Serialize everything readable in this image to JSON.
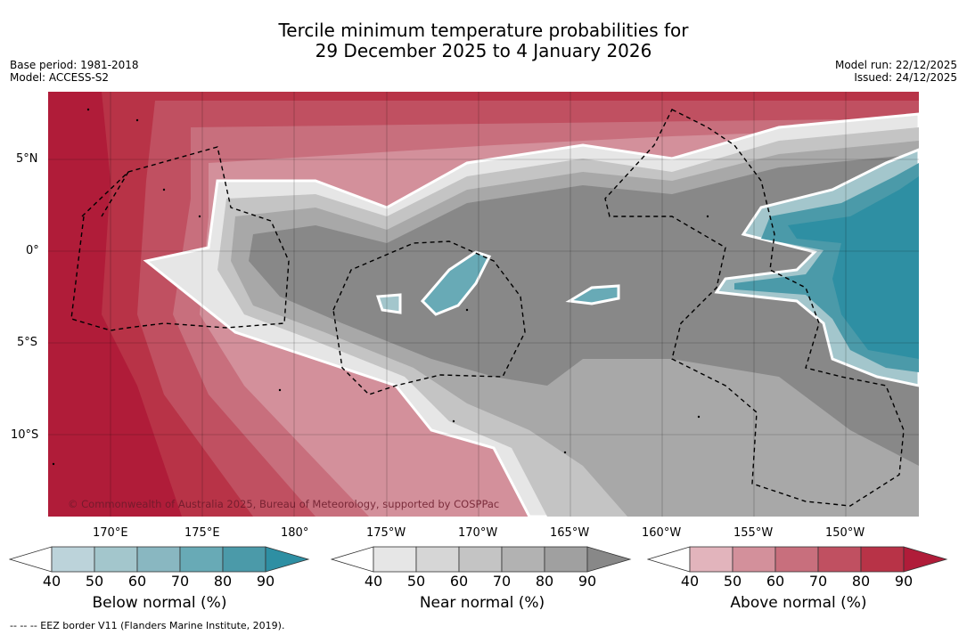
{
  "title": {
    "line1": "Tercile minimum temperature probabilities for",
    "line2": "29 December 2025 to 4 January 2026"
  },
  "meta_left": {
    "base_period": "Base period: 1981-2018",
    "model": "Model: ACCESS-S2"
  },
  "meta_right": {
    "model_run": "Model run: 22/12/2025",
    "issued": "Issued: 24/12/2025"
  },
  "latitude_labels": [
    "5°N",
    "0°",
    "5°S",
    "10°S"
  ],
  "longitude_labels": [
    "170°E",
    "175°E",
    "180°",
    "175°W",
    "170°W",
    "165°W",
    "160°W",
    "155°W",
    "150°W"
  ],
  "copyright": "© Commonwealth of Australia 2025, Bureau of Meteorology, supported by COSPPac",
  "colorbars": [
    {
      "title": "Below normal (%)",
      "ticks": [
        "40",
        "50",
        "60",
        "70",
        "80",
        "90"
      ],
      "colors": [
        "#ffffff",
        "#bcd3da",
        "#a3c6cc",
        "#89b7c1",
        "#68aab6",
        "#4b9aa9",
        "#2e8fa3"
      ]
    },
    {
      "title": "Near normal (%)",
      "ticks": [
        "40",
        "50",
        "60",
        "70",
        "80",
        "90"
      ],
      "colors": [
        "#ffffff",
        "#e6e6e6",
        "#d6d6d6",
        "#c4c4c4",
        "#b2b2b2",
        "#a0a0a0",
        "#888888"
      ]
    },
    {
      "title": "Above normal (%)",
      "ticks": [
        "40",
        "50",
        "60",
        "70",
        "80",
        "90"
      ],
      "colors": [
        "#ffffff",
        "#e2b4bc",
        "#d3909b",
        "#c86f7d",
        "#c05061",
        "#b83347",
        "#b01c39"
      ]
    }
  ],
  "footnote": "--  --  -- EEZ border V11 (Flanders Marine Institute, 2019)."
}
